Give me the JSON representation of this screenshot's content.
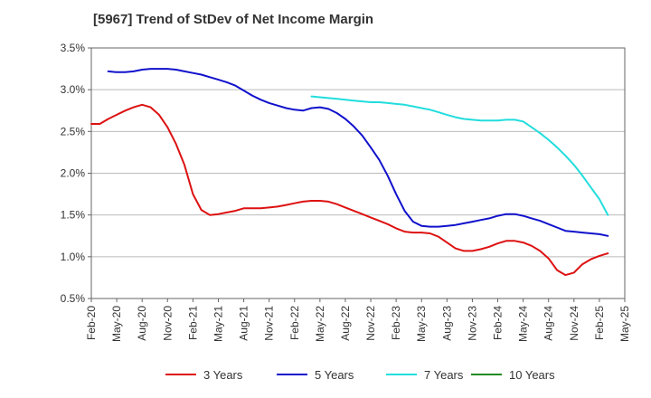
{
  "chart_data": {
    "type": "line",
    "title": "[5967]  Trend of StDev of Net Income Margin",
    "xlabel": "",
    "ylabel": "",
    "ylim": [
      0.5,
      3.5
    ],
    "y_ticks": [
      "0.5%",
      "1.0%",
      "1.5%",
      "2.0%",
      "2.5%",
      "3.0%",
      "3.5%"
    ],
    "y_tick_values": [
      0.5,
      1.0,
      1.5,
      2.0,
      2.5,
      3.0,
      3.5
    ],
    "x_ticks": [
      "Feb-20",
      "May-20",
      "Aug-20",
      "Nov-20",
      "Feb-21",
      "May-21",
      "Aug-21",
      "Nov-21",
      "Feb-22",
      "May-22",
      "Aug-22",
      "Nov-22",
      "Feb-23",
      "May-23",
      "Aug-23",
      "Nov-23",
      "Feb-24",
      "May-24",
      "Aug-24",
      "Nov-24",
      "Feb-25",
      "May-25"
    ],
    "grid": "horizontal",
    "legend_position": "bottom",
    "series": [
      {
        "name": "3 Years",
        "color": "#dd1111",
        "points": [
          [
            "Feb-20",
            2.59
          ],
          [
            "Mar-20",
            2.59
          ],
          [
            "Apr-20",
            2.65
          ],
          [
            "May-20",
            2.7
          ],
          [
            "Jun-20",
            2.75
          ],
          [
            "Jul-20",
            2.79
          ],
          [
            "Aug-20",
            2.82
          ],
          [
            "Sep-20",
            2.79
          ],
          [
            "Oct-20",
            2.7
          ],
          [
            "Nov-20",
            2.55
          ],
          [
            "Dec-20",
            2.35
          ],
          [
            "Jan-21",
            2.1
          ],
          [
            "Feb-21",
            1.75
          ],
          [
            "Mar-21",
            1.56
          ],
          [
            "Apr-21",
            1.5
          ],
          [
            "May-21",
            1.51
          ],
          [
            "Jun-21",
            1.53
          ],
          [
            "Jul-21",
            1.55
          ],
          [
            "Aug-21",
            1.58
          ],
          [
            "Sep-21",
            1.58
          ],
          [
            "Oct-21",
            1.58
          ],
          [
            "Nov-21",
            1.59
          ],
          [
            "Dec-21",
            1.6
          ],
          [
            "Jan-22",
            1.62
          ],
          [
            "Feb-22",
            1.64
          ],
          [
            "Mar-22",
            1.66
          ],
          [
            "Apr-22",
            1.67
          ],
          [
            "May-22",
            1.67
          ],
          [
            "Jun-22",
            1.66
          ],
          [
            "Jul-22",
            1.63
          ],
          [
            "Aug-22",
            1.59
          ],
          [
            "Sep-22",
            1.55
          ],
          [
            "Oct-22",
            1.51
          ],
          [
            "Nov-22",
            1.47
          ],
          [
            "Dec-22",
            1.43
          ],
          [
            "Jan-23",
            1.39
          ],
          [
            "Feb-23",
            1.34
          ],
          [
            "Mar-23",
            1.3
          ],
          [
            "Apr-23",
            1.29
          ],
          [
            "May-23",
            1.29
          ],
          [
            "Jun-23",
            1.28
          ],
          [
            "Jul-23",
            1.24
          ],
          [
            "Aug-23",
            1.17
          ],
          [
            "Sep-23",
            1.1
          ],
          [
            "Oct-23",
            1.07
          ],
          [
            "Nov-23",
            1.07
          ],
          [
            "Dec-23",
            1.09
          ],
          [
            "Jan-24",
            1.12
          ],
          [
            "Feb-24",
            1.16
          ],
          [
            "Mar-24",
            1.19
          ],
          [
            "Apr-24",
            1.19
          ],
          [
            "May-24",
            1.17
          ],
          [
            "Jun-24",
            1.13
          ],
          [
            "Jul-24",
            1.07
          ],
          [
            "Aug-24",
            0.98
          ],
          [
            "Sep-24",
            0.84
          ],
          [
            "Oct-24",
            0.78
          ],
          [
            "Nov-24",
            0.81
          ],
          [
            "Dec-24",
            0.91
          ],
          [
            "Jan-25",
            0.97
          ],
          [
            "Feb-25",
            1.01
          ],
          [
            "Mar-25",
            1.04
          ]
        ]
      },
      {
        "name": "5 Years",
        "color": "#1111cc",
        "points": [
          [
            "Apr-20",
            3.22
          ],
          [
            "May-20",
            3.21
          ],
          [
            "Jun-20",
            3.21
          ],
          [
            "Jul-20",
            3.22
          ],
          [
            "Aug-20",
            3.24
          ],
          [
            "Sep-20",
            3.25
          ],
          [
            "Oct-20",
            3.25
          ],
          [
            "Nov-20",
            3.25
          ],
          [
            "Dec-20",
            3.24
          ],
          [
            "Jan-21",
            3.22
          ],
          [
            "Feb-21",
            3.2
          ],
          [
            "Mar-21",
            3.18
          ],
          [
            "Apr-21",
            3.15
          ],
          [
            "May-21",
            3.12
          ],
          [
            "Jun-21",
            3.09
          ],
          [
            "Jul-21",
            3.05
          ],
          [
            "Aug-21",
            2.99
          ],
          [
            "Sep-21",
            2.93
          ],
          [
            "Oct-21",
            2.88
          ],
          [
            "Nov-21",
            2.84
          ],
          [
            "Dec-21",
            2.81
          ],
          [
            "Jan-22",
            2.78
          ],
          [
            "Feb-22",
            2.76
          ],
          [
            "Mar-22",
            2.75
          ],
          [
            "Apr-22",
            2.78
          ],
          [
            "May-22",
            2.79
          ],
          [
            "Jun-22",
            2.77
          ],
          [
            "Jul-22",
            2.72
          ],
          [
            "Aug-22",
            2.65
          ],
          [
            "Sep-22",
            2.56
          ],
          [
            "Oct-22",
            2.45
          ],
          [
            "Nov-22",
            2.31
          ],
          [
            "Dec-22",
            2.16
          ],
          [
            "Jan-23",
            1.97
          ],
          [
            "Feb-23",
            1.75
          ],
          [
            "Mar-23",
            1.55
          ],
          [
            "Apr-23",
            1.42
          ],
          [
            "May-23",
            1.37
          ],
          [
            "Jun-23",
            1.36
          ],
          [
            "Jul-23",
            1.36
          ],
          [
            "Aug-23",
            1.37
          ],
          [
            "Sep-23",
            1.38
          ],
          [
            "Oct-23",
            1.4
          ],
          [
            "Nov-23",
            1.42
          ],
          [
            "Dec-23",
            1.44
          ],
          [
            "Jan-24",
            1.46
          ],
          [
            "Feb-24",
            1.49
          ],
          [
            "Mar-24",
            1.51
          ],
          [
            "Apr-24",
            1.51
          ],
          [
            "May-24",
            1.49
          ],
          [
            "Jun-24",
            1.46
          ],
          [
            "Jul-24",
            1.43
          ],
          [
            "Aug-24",
            1.39
          ],
          [
            "Sep-24",
            1.35
          ],
          [
            "Oct-24",
            1.31
          ],
          [
            "Nov-24",
            1.3
          ],
          [
            "Dec-24",
            1.29
          ],
          [
            "Jan-25",
            1.28
          ],
          [
            "Feb-25",
            1.27
          ],
          [
            "Mar-25",
            1.25
          ]
        ]
      },
      {
        "name": "7 Years",
        "color": "#22dddd",
        "points": [
          [
            "Apr-22",
            2.92
          ],
          [
            "May-22",
            2.91
          ],
          [
            "Jun-22",
            2.9
          ],
          [
            "Jul-22",
            2.89
          ],
          [
            "Aug-22",
            2.88
          ],
          [
            "Sep-22",
            2.87
          ],
          [
            "Oct-22",
            2.86
          ],
          [
            "Nov-22",
            2.85
          ],
          [
            "Dec-22",
            2.85
          ],
          [
            "Jan-23",
            2.84
          ],
          [
            "Feb-23",
            2.83
          ],
          [
            "Mar-23",
            2.82
          ],
          [
            "Apr-23",
            2.8
          ],
          [
            "May-23",
            2.78
          ],
          [
            "Jun-23",
            2.76
          ],
          [
            "Jul-23",
            2.73
          ],
          [
            "Aug-23",
            2.7
          ],
          [
            "Sep-23",
            2.67
          ],
          [
            "Oct-23",
            2.65
          ],
          [
            "Nov-23",
            2.64
          ],
          [
            "Dec-23",
            2.63
          ],
          [
            "Jan-24",
            2.63
          ],
          [
            "Feb-24",
            2.63
          ],
          [
            "Mar-24",
            2.64
          ],
          [
            "Apr-24",
            2.64
          ],
          [
            "May-24",
            2.62
          ],
          [
            "Jun-24",
            2.55
          ],
          [
            "Jul-24",
            2.48
          ],
          [
            "Aug-24",
            2.4
          ],
          [
            "Sep-24",
            2.31
          ],
          [
            "Oct-24",
            2.21
          ],
          [
            "Nov-24",
            2.1
          ],
          [
            "Dec-24",
            1.97
          ],
          [
            "Jan-25",
            1.83
          ],
          [
            "Feb-25",
            1.69
          ],
          [
            "Mar-25",
            1.5
          ]
        ]
      },
      {
        "name": "10 Years",
        "color": "#228b22",
        "points": []
      }
    ]
  }
}
